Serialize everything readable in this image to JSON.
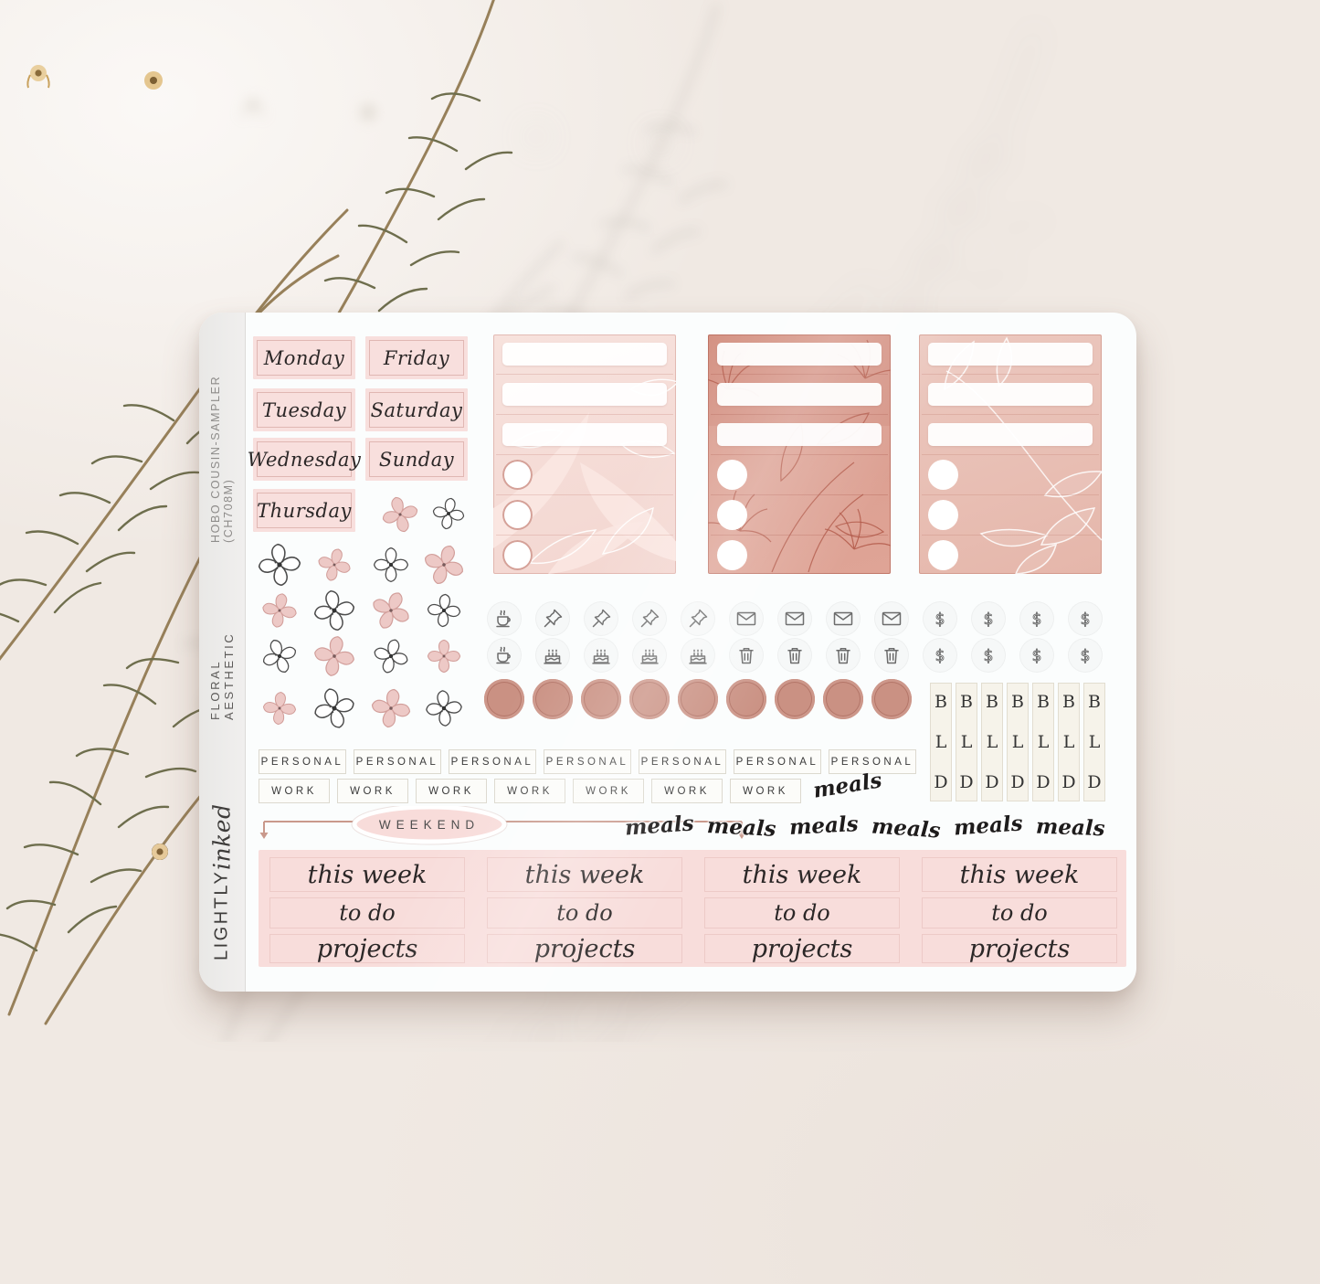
{
  "sheet": {
    "side_sku": "HOBO COUSIN-SAMPLER (CH708M)",
    "side_collection": "FLORAL AESTHETIC",
    "brand_name": "LIGHTLY",
    "brand_script": "inked"
  },
  "days": {
    "col1": [
      "Monday",
      "Tuesday",
      "Wednesday",
      "Thursday"
    ],
    "col2": [
      "Friday",
      "Saturday",
      "Sunday"
    ]
  },
  "icon_rows": [
    [
      "coffee",
      "pin",
      "pin",
      "pin",
      "pin",
      "envelope",
      "envelope",
      "envelope",
      "envelope",
      "dollar",
      "dollar",
      "dollar",
      "dollar"
    ],
    [
      "coffee",
      "cake",
      "cake",
      "cake",
      "cake",
      "trash",
      "trash",
      "trash",
      "trash",
      "dollar",
      "dollar",
      "dollar",
      "dollar"
    ]
  ],
  "labels": {
    "personal": "PERSONAL",
    "work": "WORK",
    "weekend": "WEEKEND",
    "meals": "meals",
    "this_week": "this week",
    "to_do": "to do",
    "projects": "projects",
    "breakfast": "B",
    "lunch": "L",
    "dinner": "D"
  },
  "colors": {
    "background": "#f0e9e3",
    "sheet_white": "#fbfdfd",
    "blush_pink": "#f8dfdd",
    "dusty_rose": "#dc9d90",
    "rose_medium": "#e9c2b8",
    "dot_rose": "#ca9183",
    "ivory": "#f6f3ea",
    "ink": "#2b2727"
  }
}
